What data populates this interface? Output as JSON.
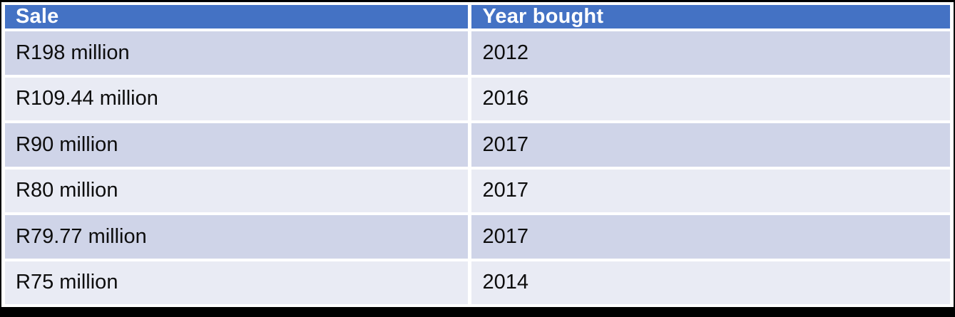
{
  "colors": {
    "frame": "#000000",
    "gap": "#FFFFFF",
    "header_bg": "#4472C4",
    "header_text": "#FFFFFF",
    "band_dark": "#CFD4E8",
    "band_light": "#E9EBF4",
    "cell_text": "#0D0D0D"
  },
  "table": {
    "headers": [
      "Sale",
      "Year bought"
    ],
    "rows": [
      [
        "R198 million",
        "2012"
      ],
      [
        "R109.44 million",
        "2016"
      ],
      [
        "R90 million",
        "2017"
      ],
      [
        "R80 million",
        "2017"
      ],
      [
        "R79.77 million",
        "2017"
      ],
      [
        "R75 million",
        "2014"
      ]
    ]
  },
  "chart_data": {
    "type": "table",
    "columns": [
      "Sale",
      "Year bought"
    ],
    "rows": [
      {
        "sale": "R198 million",
        "year_bought": "2012"
      },
      {
        "sale": "R109.44 million",
        "year_bought": "2016"
      },
      {
        "sale": "R90 million",
        "year_bought": "2017"
      },
      {
        "sale": "R80 million",
        "year_bought": "2017"
      },
      {
        "sale": "R79.77 million",
        "year_bought": "2017"
      },
      {
        "sale": "R75 million",
        "year_bought": "2014"
      }
    ],
    "title": "",
    "legend": "none",
    "banded_rows": true
  }
}
